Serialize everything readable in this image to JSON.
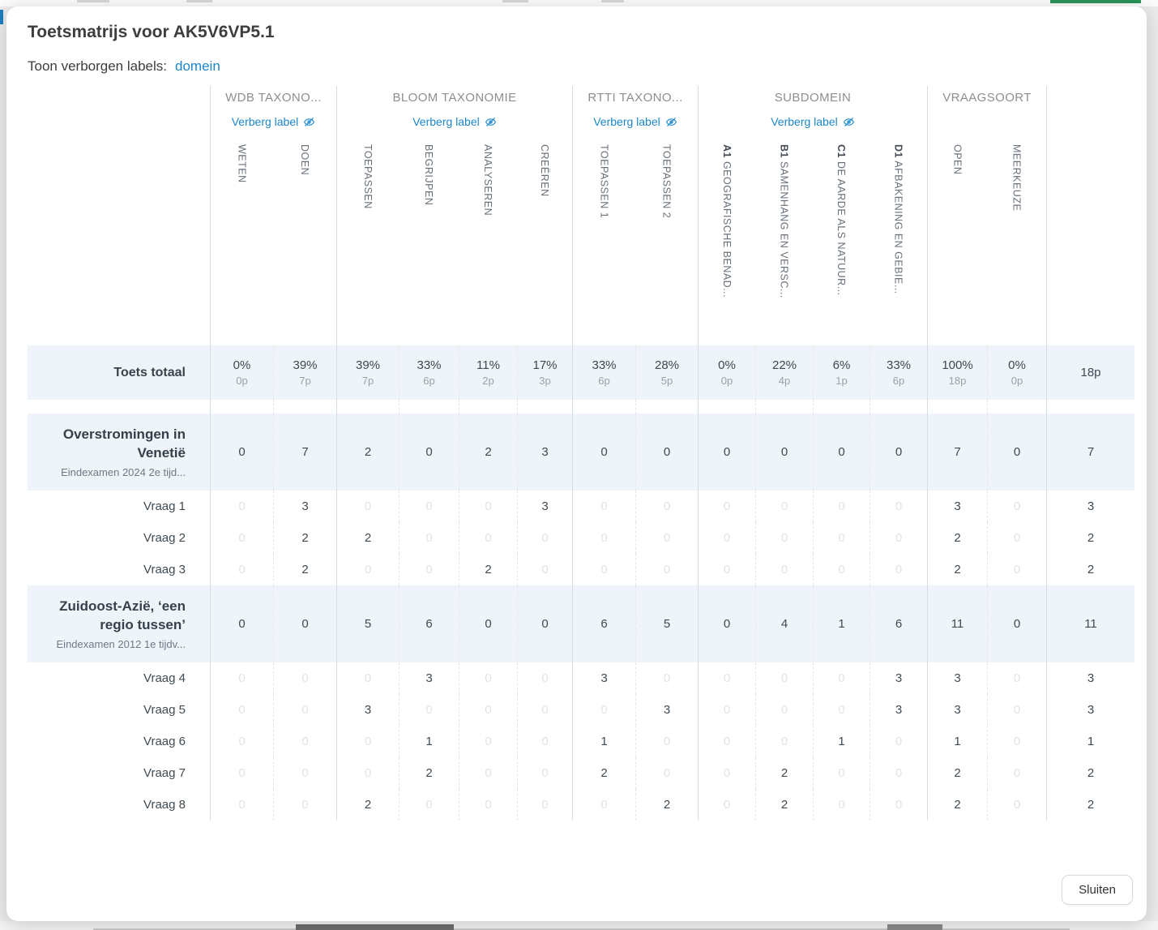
{
  "modal": {
    "title": "Toetsmatrijs voor AK5V6VP5.1",
    "toggle_label": "Toon verborgen labels:",
    "toggle_link": "domein",
    "close_button": "Sluiten"
  },
  "icons": {
    "hide_label": "eye-slash-icon"
  },
  "colors": {
    "link_blue": "#1b87c9",
    "row_highlight": "#eef4f9",
    "value_dark": "#3f4a52",
    "value_muted_zero": "#e0e4e7",
    "top_bar_green": "#2a9358"
  },
  "table": {
    "hide_label_text": "Verberg label",
    "row_label_total": "Toets totaal",
    "groups": [
      {
        "label": "WDB TAXONO...",
        "has_hide_label": true,
        "columns": [
          {
            "text": "WETEN"
          },
          {
            "text": "DOEN"
          }
        ]
      },
      {
        "label": "BLOOM TAXONOMIE",
        "has_hide_label": true,
        "columns": [
          {
            "text": "TOEPASSEN"
          },
          {
            "text": "BEGRIJPEN"
          },
          {
            "text": "ANALYSEREN"
          },
          {
            "text": "CREËREN"
          }
        ]
      },
      {
        "label": "RTTI TAXONO...",
        "has_hide_label": true,
        "columns": [
          {
            "text": "TOEPASSEN 1"
          },
          {
            "text": "TOEPASSEN 2"
          }
        ]
      },
      {
        "label": "SUBDOMEIN",
        "has_hide_label": true,
        "columns": [
          {
            "prefix": "A1",
            "text": "GEOGRAFISCHE BENAD..."
          },
          {
            "prefix": "B1",
            "text": "SAMENHANG EN VERSC..."
          },
          {
            "prefix": "C1",
            "text": "DE AARDE ALS NATUUR..."
          },
          {
            "prefix": "D1",
            "text": "AFBAKENING EN GEBIE..."
          }
        ]
      },
      {
        "label": "VRAAGSOORT",
        "has_hide_label": false,
        "columns": [
          {
            "text": "OPEN"
          },
          {
            "text": "MEERKEUZE"
          }
        ]
      }
    ],
    "totals": {
      "cells": [
        {
          "pct": "0%",
          "pts": "0p"
        },
        {
          "pct": "39%",
          "pts": "7p"
        },
        {
          "pct": "39%",
          "pts": "7p"
        },
        {
          "pct": "33%",
          "pts": "6p"
        },
        {
          "pct": "11%",
          "pts": "2p"
        },
        {
          "pct": "17%",
          "pts": "3p"
        },
        {
          "pct": "33%",
          "pts": "6p"
        },
        {
          "pct": "28%",
          "pts": "5p"
        },
        {
          "pct": "0%",
          "pts": "0p"
        },
        {
          "pct": "22%",
          "pts": "4p"
        },
        {
          "pct": "6%",
          "pts": "1p"
        },
        {
          "pct": "33%",
          "pts": "6p"
        },
        {
          "pct": "100%",
          "pts": "18p"
        },
        {
          "pct": "0%",
          "pts": "0p"
        }
      ],
      "grand_total": "18p"
    },
    "sections": [
      {
        "title": "Overstromingen in Venetië",
        "subtitle": "Eindexamen 2024 2e tijd...",
        "values": [
          0,
          7,
          2,
          0,
          2,
          3,
          0,
          0,
          0,
          0,
          0,
          0,
          7,
          0
        ],
        "total": 7,
        "questions": [
          {
            "label": "Vraag 1",
            "values": [
              0,
              3,
              0,
              0,
              0,
              3,
              0,
              0,
              0,
              0,
              0,
              0,
              3,
              0
            ],
            "total": 3
          },
          {
            "label": "Vraag 2",
            "values": [
              0,
              2,
              2,
              0,
              0,
              0,
              0,
              0,
              0,
              0,
              0,
              0,
              2,
              0
            ],
            "total": 2
          },
          {
            "label": "Vraag 3",
            "values": [
              0,
              2,
              0,
              0,
              2,
              0,
              0,
              0,
              0,
              0,
              0,
              0,
              2,
              0
            ],
            "total": 2
          }
        ]
      },
      {
        "title": "Zuidoost-Azië, ‘een regio tussen’",
        "subtitle": "Eindexamen 2012 1e tijdv...",
        "values": [
          0,
          0,
          5,
          6,
          0,
          0,
          6,
          5,
          0,
          4,
          1,
          6,
          11,
          0
        ],
        "total": 11,
        "questions": [
          {
            "label": "Vraag 4",
            "values": [
              0,
              0,
              0,
              3,
              0,
              0,
              3,
              0,
              0,
              0,
              0,
              3,
              3,
              0
            ],
            "total": 3
          },
          {
            "label": "Vraag 5",
            "values": [
              0,
              0,
              3,
              0,
              0,
              0,
              0,
              3,
              0,
              0,
              0,
              3,
              3,
              0
            ],
            "total": 3
          },
          {
            "label": "Vraag 6",
            "values": [
              0,
              0,
              0,
              1,
              0,
              0,
              1,
              0,
              0,
              0,
              1,
              0,
              1,
              0
            ],
            "total": 1
          },
          {
            "label": "Vraag 7",
            "values": [
              0,
              0,
              0,
              2,
              0,
              0,
              2,
              0,
              0,
              2,
              0,
              0,
              2,
              0
            ],
            "total": 2
          },
          {
            "label": "Vraag 8",
            "values": [
              0,
              0,
              2,
              0,
              0,
              0,
              0,
              2,
              0,
              2,
              0,
              0,
              2,
              0
            ],
            "total": 2
          }
        ]
      }
    ]
  }
}
